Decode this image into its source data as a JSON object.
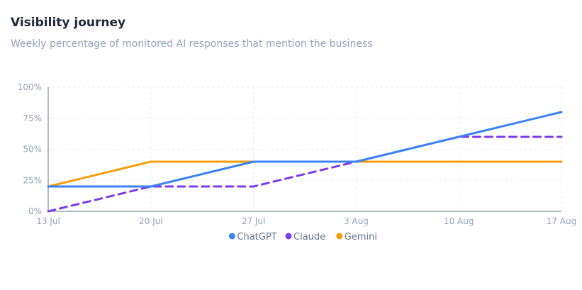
{
  "header": {
    "title": "Visibility journey",
    "subtitle": "Weekly percentage of monitored AI responses that mention the business"
  },
  "chart_data": {
    "type": "line",
    "title": "Visibility journey",
    "subtitle": "Weekly percentage of monitored AI responses that mention the business",
    "x": [
      "13 Jul",
      "20 Jul",
      "27 Jul",
      "3 Aug",
      "10 Aug",
      "17 Aug"
    ],
    "y_ticks": [
      "0%",
      "25%",
      "50%",
      "75%",
      "100%"
    ],
    "ylim": [
      0,
      100
    ],
    "grid": true,
    "legend_position": "bottom-center",
    "series": [
      {
        "name": "ChatGPT",
        "values": [
          20,
          20,
          40,
          40,
          60,
          80
        ],
        "color": "#3b82f6",
        "dash": "solid"
      },
      {
        "name": "Claude",
        "values": [
          0,
          20,
          20,
          40,
          60,
          60
        ],
        "color": "#7c3aed",
        "dash": "dashed"
      },
      {
        "name": "Gemini",
        "values": [
          20,
          40,
          40,
          40,
          40,
          40
        ],
        "color": "#f59e0b",
        "dash": "solid"
      }
    ]
  }
}
